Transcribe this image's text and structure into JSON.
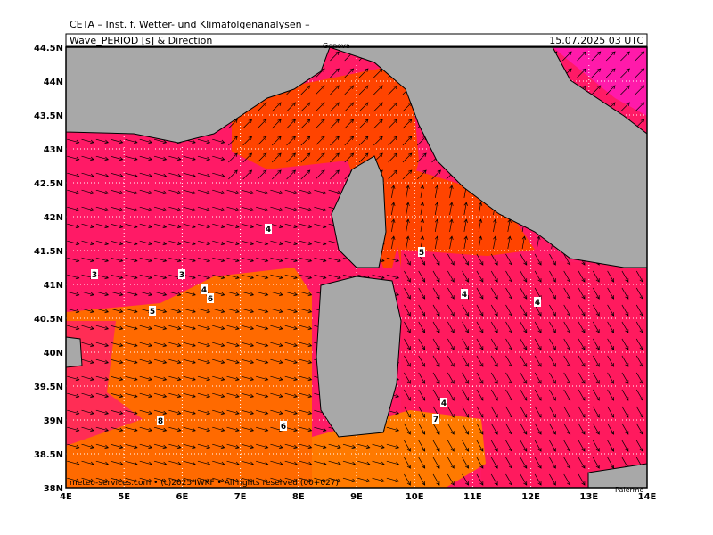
{
  "header": {
    "title": "CETA – Inst. f. Wetter- und Klimafolgenanalysen –",
    "subtitle": "Wave_PERIOD [s] & Direction",
    "timestamp": "15.07.2025 03 UTC"
  },
  "map": {
    "lat_ticks": [
      {
        "value": 44.5,
        "label": "44.5N"
      },
      {
        "value": 44,
        "label": "44N"
      },
      {
        "value": 43.5,
        "label": "43.5N"
      },
      {
        "value": 43,
        "label": "43N"
      },
      {
        "value": 42.5,
        "label": "42.5N"
      },
      {
        "value": 42,
        "label": "42N"
      },
      {
        "value": 41.5,
        "label": "41.5N"
      },
      {
        "value": 41,
        "label": "41N"
      },
      {
        "value": 40.5,
        "label": "40.5N"
      },
      {
        "value": 40,
        "label": "40N"
      },
      {
        "value": 39.5,
        "label": "39.5N"
      },
      {
        "value": 39,
        "label": "39N"
      },
      {
        "value": 38.5,
        "label": "38.5N"
      },
      {
        "value": 38,
        "label": "38N"
      }
    ],
    "lon_ticks": [
      {
        "value": 4,
        "label": "4E"
      },
      {
        "value": 5,
        "label": "5E"
      },
      {
        "value": 6,
        "label": "6E"
      },
      {
        "value": 7,
        "label": "7E"
      },
      {
        "value": 8,
        "label": "8E"
      },
      {
        "value": 9,
        "label": "9E"
      },
      {
        "value": 10,
        "label": "10E"
      },
      {
        "value": 11,
        "label": "11E"
      },
      {
        "value": 12,
        "label": "12E"
      },
      {
        "value": 13,
        "label": "13E"
      },
      {
        "value": 14,
        "label": "14E"
      }
    ],
    "contour_labels": [
      4,
      3,
      3,
      4,
      6,
      5,
      5,
      4,
      4,
      8,
      6,
      7,
      4
    ],
    "places": [
      "Genova",
      "Palermo"
    ]
  },
  "footer": "meteo-services.com • (c)2025 IWKF • All rights reserved (00+027)"
}
